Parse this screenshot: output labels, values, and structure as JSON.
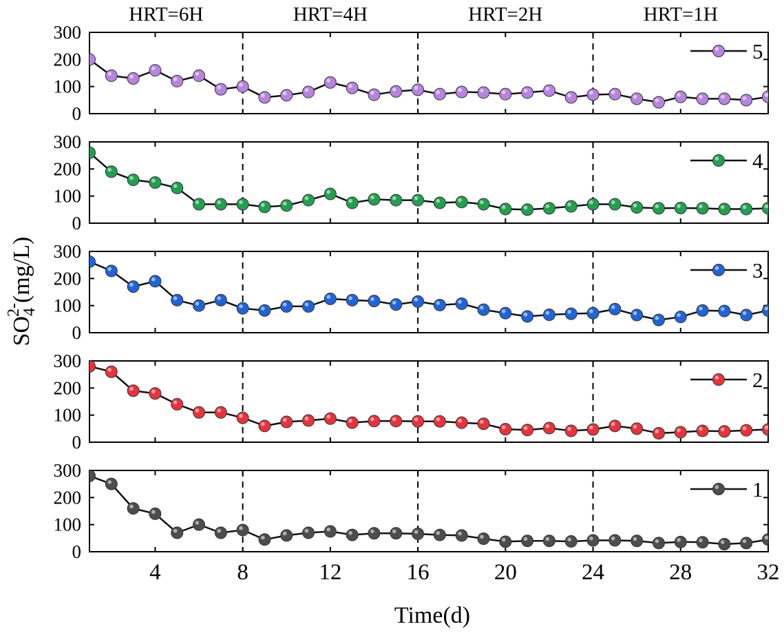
{
  "chart_data": {
    "type": "line",
    "ylabel": {
      "base": "SO",
      "sub": "4",
      "sup": "2-",
      "rest": "(mg/L)"
    },
    "xlabel": "Time(d)",
    "xlim": [
      1,
      32
    ],
    "ylim": [
      0,
      300
    ],
    "x_ticks": [
      4,
      8,
      12,
      16,
      20,
      24,
      28,
      32
    ],
    "y_ticks": [
      0,
      100,
      200,
      300
    ],
    "phase_dividers": [
      8,
      16,
      24
    ],
    "phases": [
      {
        "label": "HRT=6H",
        "start": 1,
        "end": 8
      },
      {
        "label": "HRT=4H",
        "start": 8,
        "end": 16
      },
      {
        "label": "HRT=2H",
        "start": 16,
        "end": 24
      },
      {
        "label": "HRT=1H",
        "start": 24,
        "end": 32
      }
    ],
    "x": [
      1,
      2,
      3,
      4,
      5,
      6,
      7,
      8,
      9,
      10,
      11,
      12,
      13,
      14,
      15,
      16,
      17,
      18,
      19,
      20,
      21,
      22,
      23,
      24,
      25,
      26,
      27,
      28,
      29,
      30,
      31,
      32
    ],
    "series": [
      {
        "name": "5",
        "color": "#b784e0",
        "values": [
          200,
          140,
          130,
          160,
          120,
          140,
          90,
          100,
          60,
          68,
          80,
          115,
          95,
          70,
          82,
          88,
          72,
          80,
          78,
          72,
          78,
          85,
          60,
          70,
          72,
          55,
          42,
          62,
          55,
          55,
          50,
          62
        ]
      },
      {
        "name": "4",
        "color": "#22a050",
        "values": [
          260,
          190,
          160,
          150,
          130,
          70,
          70,
          70,
          60,
          65,
          85,
          108,
          75,
          88,
          85,
          85,
          75,
          78,
          70,
          52,
          50,
          55,
          62,
          70,
          70,
          58,
          55,
          56,
          55,
          52,
          52,
          55
        ]
      },
      {
        "name": "3",
        "color": "#2064d8",
        "values": [
          262,
          228,
          170,
          190,
          120,
          100,
          120,
          90,
          82,
          97,
          97,
          125,
          120,
          117,
          104,
          115,
          102,
          107,
          85,
          72,
          60,
          66,
          70,
          72,
          87,
          65,
          47,
          58,
          82,
          80,
          65,
          82
        ]
      },
      {
        "name": "2",
        "color": "#e8333c",
        "values": [
          280,
          260,
          190,
          180,
          140,
          110,
          110,
          90,
          60,
          75,
          80,
          87,
          72,
          78,
          78,
          77,
          77,
          72,
          68,
          48,
          45,
          52,
          42,
          47,
          60,
          50,
          33,
          37,
          42,
          40,
          44,
          47
        ]
      },
      {
        "name": "1",
        "color": "#4d4d4d",
        "values": [
          280,
          250,
          160,
          140,
          70,
          100,
          70,
          80,
          45,
          60,
          70,
          75,
          62,
          68,
          68,
          66,
          62,
          60,
          48,
          37,
          40,
          40,
          38,
          42,
          42,
          40,
          32,
          36,
          35,
          28,
          32,
          45
        ]
      }
    ]
  }
}
